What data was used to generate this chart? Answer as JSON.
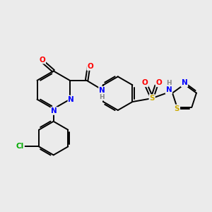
{
  "background_color": "#ebebeb",
  "bond_color": "#000000",
  "atom_colors": {
    "N": "#0000ff",
    "O": "#ff0000",
    "S": "#ccaa00",
    "Cl": "#00aa00",
    "H": "#888888",
    "C": "#000000"
  },
  "figsize": [
    3.0,
    3.0
  ],
  "dpi": 100
}
